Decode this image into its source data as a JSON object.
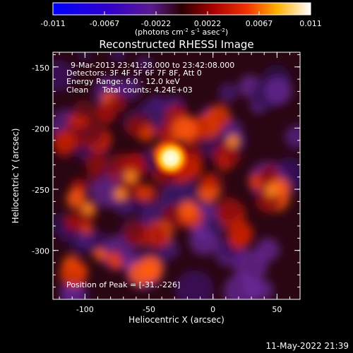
{
  "colorbar": {
    "tick_labels": [
      "-0.011",
      "-0.0067",
      "-0.0022",
      "0.0022",
      "0.0067",
      "0.011"
    ],
    "unit_prefix": "(photons cm",
    "unit_exp1": "-2",
    "unit_mid": " s",
    "unit_exp2": "-1",
    "unit_mid2": " asec",
    "unit_exp3": "-2",
    "unit_suffix": ")"
  },
  "title": "Reconstructed RHESSI Image",
  "annotations": {
    "time": "9-Mar-2013 23:41:28.000 to 23:42:08.000",
    "detectors": "Detectors: 3F 4F 5F 6F 7F 8F, Att 0",
    "energy": "Energy Range: 6.0 - 12.0 keV",
    "method": "Clean",
    "counts": "Total counts: 4.24E+03",
    "peak": "Position of Peak = [-31.,-226]"
  },
  "axes": {
    "xlabel": "Heliocentric X (arcsec)",
    "ylabel": "Heliocentric Y (arcsec)",
    "x_ticks": [
      "-100",
      "-50",
      "0",
      "50"
    ],
    "y_ticks": [
      "-150",
      "-200",
      "-250",
      "-300"
    ]
  },
  "footer": {
    "timestamp": "11-May-2022 21:39"
  },
  "colors": {
    "background": "#000000",
    "foreground": "#ffffff"
  }
}
